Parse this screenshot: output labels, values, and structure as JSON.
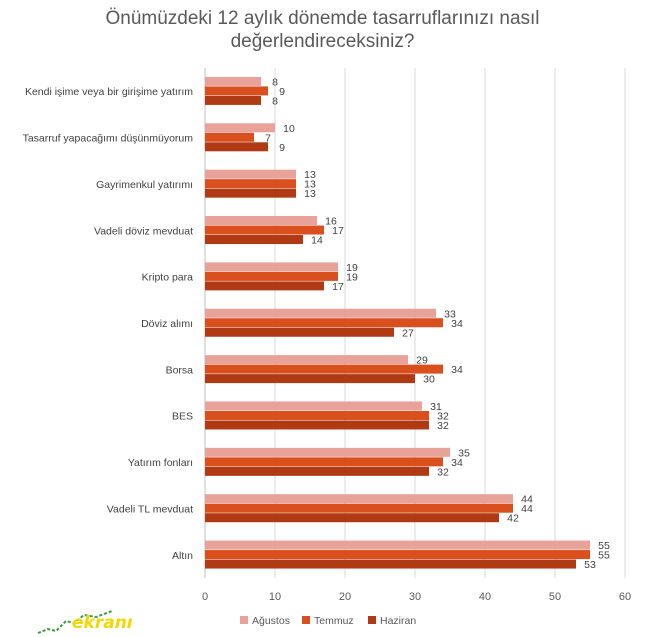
{
  "chart_data": {
    "type": "bar",
    "orientation": "horizontal",
    "title_line1": "Önümüzdeki 12 aylık dönemde tasarruflarınızı nasıl",
    "title_line2": "değerlendireceksiniz?",
    "categories": [
      "Kendi işime veya bir girişime yatırım",
      "Tasarruf yapacağımı düşünmüyorum",
      "Gayrimenkul yatırımı",
      "Vadeli döviz mevduat",
      "Kripto para",
      "Döviz alımı",
      "Borsa",
      "BES",
      "Yatırım fonları",
      "Vadeli TL mevduat",
      "Altın"
    ],
    "series": [
      {
        "name": "Ağustos",
        "color": "#e8a29a",
        "values": [
          8,
          10,
          13,
          16,
          19,
          33,
          29,
          31,
          35,
          44,
          55
        ]
      },
      {
        "name": "Temmuz",
        "color": "#d94f1e",
        "values": [
          9,
          7,
          13,
          17,
          19,
          34,
          34,
          32,
          34,
          44,
          55
        ]
      },
      {
        "name": "Haziran",
        "color": "#b03a14",
        "values": [
          8,
          9,
          13,
          14,
          17,
          27,
          30,
          32,
          32,
          42,
          53
        ]
      }
    ],
    "xlim": [
      0,
      60
    ],
    "xticks": [
      0,
      10,
      20,
      30,
      40,
      50,
      60
    ],
    "grid": true,
    "legend_position": "bottom"
  },
  "watermark": {
    "text": "ekranı"
  }
}
